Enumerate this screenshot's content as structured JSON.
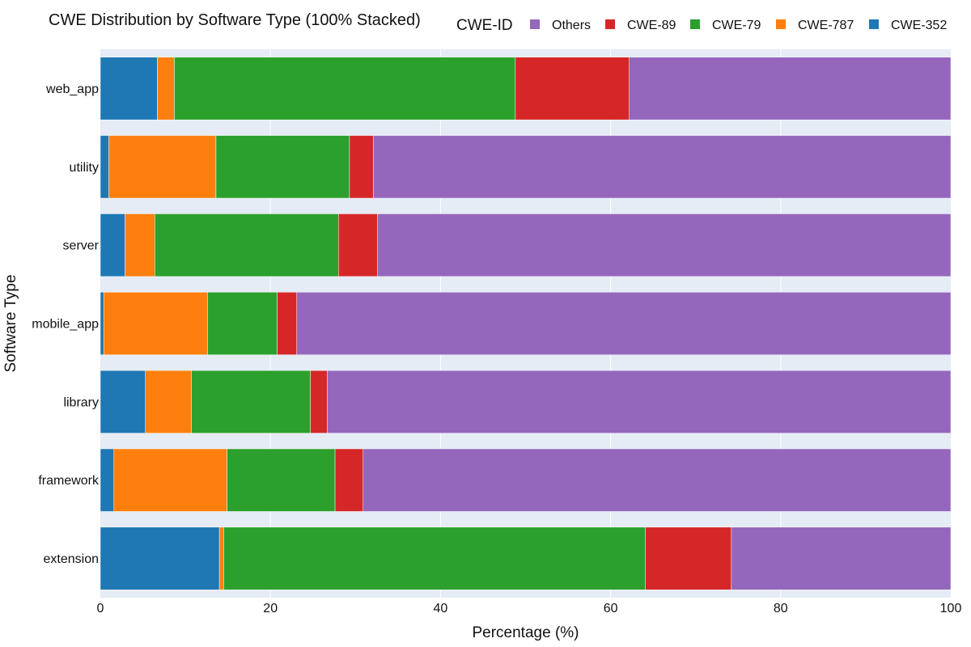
{
  "chart_data": {
    "type": "bar",
    "orientation": "horizontal",
    "stacked": true,
    "title": "CWE Distribution by Software Type (100% Stacked)",
    "xlabel": "Percentage (%)",
    "ylabel": "Software Type",
    "xlim": [
      0,
      100
    ],
    "x_ticks": [
      0,
      20,
      40,
      60,
      80,
      100
    ],
    "grid": true,
    "legend": {
      "title": "CWE-ID",
      "placement": "top-right",
      "order": [
        "Others",
        "CWE-89",
        "CWE-79",
        "CWE-787",
        "CWE-352"
      ]
    },
    "categories": [
      "web_app",
      "utility",
      "server",
      "mobile_app",
      "library",
      "framework",
      "extension"
    ],
    "series": [
      {
        "name": "CWE-352",
        "color": "#1f77b4",
        "values": [
          6.7,
          1.0,
          2.9,
          0.4,
          5.3,
          1.6,
          14.0
        ]
      },
      {
        "name": "CWE-787",
        "color": "#ff7f0e",
        "values": [
          2.0,
          12.6,
          3.5,
          12.2,
          5.4,
          13.3,
          0.5
        ]
      },
      {
        "name": "CWE-79",
        "color": "#2ca02c",
        "values": [
          40.1,
          15.7,
          21.6,
          8.2,
          14.0,
          12.7,
          49.6
        ]
      },
      {
        "name": "CWE-89",
        "color": "#d62728",
        "values": [
          13.4,
          2.8,
          4.6,
          2.3,
          2.0,
          3.3,
          10.1
        ]
      },
      {
        "name": "Others",
        "color": "#9467bd",
        "values": [
          37.8,
          67.9,
          67.4,
          76.9,
          73.3,
          69.1,
          25.8
        ]
      }
    ]
  }
}
